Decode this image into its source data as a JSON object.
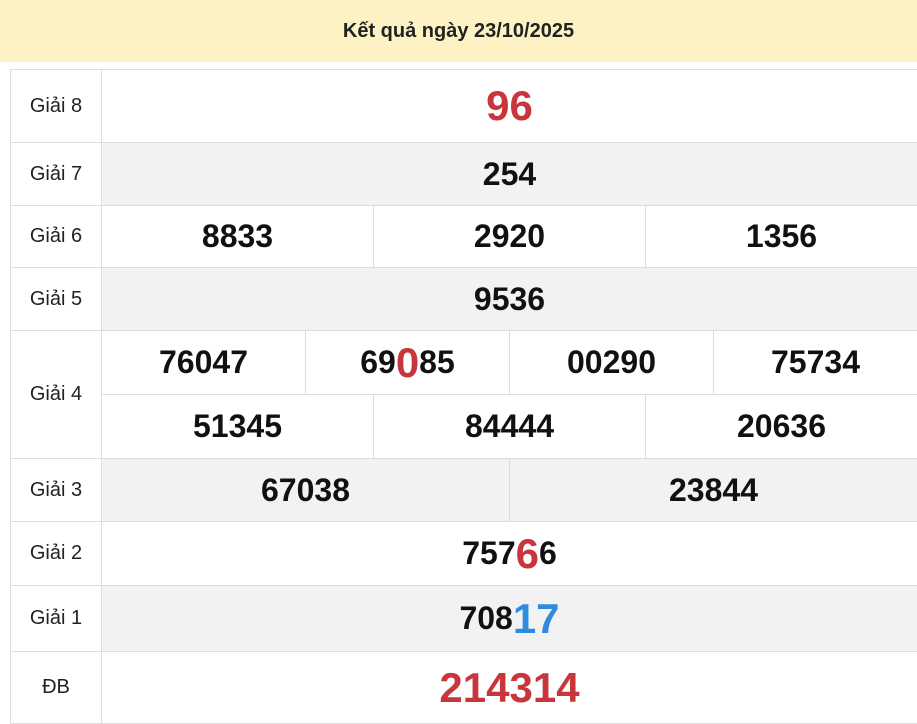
{
  "header": {
    "title": "Kết quả ngày 23/10/2025"
  },
  "table": {
    "rows": [
      {
        "label": "Giải 8",
        "lines": [
          [
            [
              {
                "text": "96",
                "color": "red",
                "size": "large"
              }
            ]
          ]
        ]
      },
      {
        "label": "Giải 7",
        "lines": [
          [
            [
              {
                "text": "254"
              }
            ]
          ]
        ]
      },
      {
        "label": "Giải 6",
        "lines": [
          [
            [
              {
                "text": "8833"
              }
            ],
            [
              {
                "text": "2920"
              }
            ],
            [
              {
                "text": "1356"
              }
            ]
          ]
        ]
      },
      {
        "label": "Giải 5",
        "lines": [
          [
            [
              {
                "text": "9536"
              }
            ]
          ]
        ]
      },
      {
        "label": "Giải 4",
        "lines": [
          [
            [
              {
                "text": "76047"
              }
            ],
            [
              {
                "text": "69"
              },
              {
                "text": "0",
                "color": "red",
                "size": "large"
              },
              {
                "text": "85"
              }
            ],
            [
              {
                "text": "00290"
              }
            ],
            [
              {
                "text": "75734"
              }
            ]
          ],
          [
            [
              {
                "text": "51345"
              }
            ],
            [
              {
                "text": "84444"
              }
            ],
            [
              {
                "text": "20636"
              }
            ]
          ]
        ]
      },
      {
        "label": "Giải 3",
        "lines": [
          [
            [
              {
                "text": "67038"
              }
            ],
            [
              {
                "text": "23844"
              }
            ]
          ]
        ]
      },
      {
        "label": "Giải 2",
        "lines": [
          [
            [
              {
                "text": "757"
              },
              {
                "text": "6",
                "color": "red",
                "size": "large"
              },
              {
                "text": "6"
              }
            ]
          ]
        ]
      },
      {
        "label": "Giải 1",
        "lines": [
          [
            [
              {
                "text": "708"
              },
              {
                "text": "17",
                "color": "blue",
                "size": "large"
              }
            ]
          ]
        ]
      },
      {
        "label": "ĐB",
        "lines": [
          [
            [
              {
                "text": "214314",
                "color": "red",
                "size": "large"
              }
            ]
          ]
        ]
      }
    ]
  }
}
